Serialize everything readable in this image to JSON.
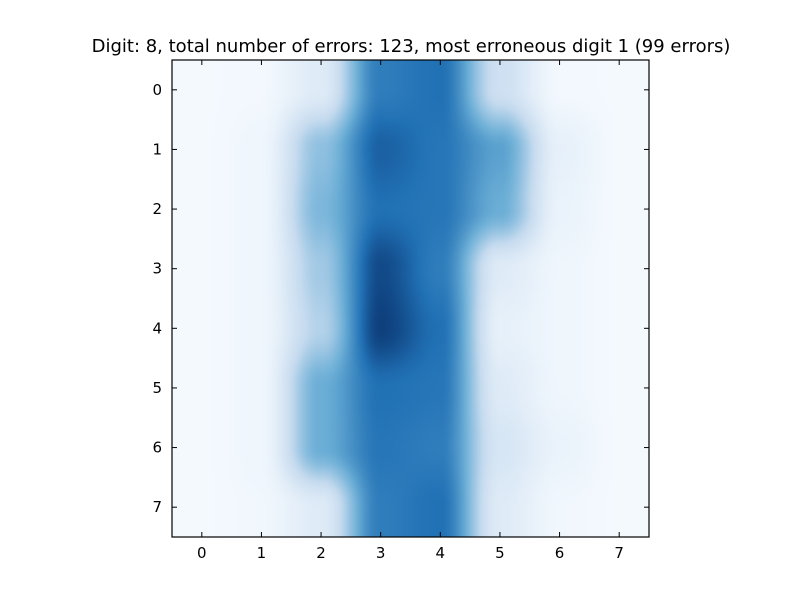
{
  "chart_data": {
    "type": "heatmap",
    "title": "Digit: 8, total number of errors: 123, most erroneous digit 1 (99 errors)",
    "xlabel": "",
    "ylabel": "",
    "x_ticks": [
      "0",
      "1",
      "2",
      "3",
      "4",
      "5",
      "6",
      "7"
    ],
    "y_ticks": [
      "0",
      "1",
      "2",
      "3",
      "4",
      "5",
      "6",
      "7"
    ],
    "xlim": [
      -0.5,
      7.5
    ],
    "ylim": [
      7.5,
      -0.5
    ],
    "colormap": "Blues",
    "interpolation": "bicubic",
    "grid": false,
    "colors": {
      "low": "#f7fbff",
      "mid1": "#c6dbef",
      "mid2": "#6baed6",
      "mid3": "#2171b5",
      "high": "#08306b"
    },
    "values": [
      [
        0.02,
        0.03,
        0.15,
        0.75,
        0.8,
        0.25,
        0.03,
        0.02
      ],
      [
        0.02,
        0.05,
        0.45,
        0.85,
        0.78,
        0.6,
        0.1,
        0.02
      ],
      [
        0.02,
        0.05,
        0.5,
        0.8,
        0.78,
        0.55,
        0.08,
        0.02
      ],
      [
        0.02,
        0.05,
        0.4,
        0.92,
        0.75,
        0.15,
        0.05,
        0.02
      ],
      [
        0.02,
        0.05,
        0.35,
        0.95,
        0.8,
        0.1,
        0.05,
        0.02
      ],
      [
        0.02,
        0.05,
        0.55,
        0.8,
        0.78,
        0.15,
        0.05,
        0.02
      ],
      [
        0.02,
        0.05,
        0.55,
        0.78,
        0.75,
        0.2,
        0.08,
        0.02
      ],
      [
        0.02,
        0.04,
        0.15,
        0.75,
        0.8,
        0.15,
        0.04,
        0.02
      ]
    ]
  }
}
